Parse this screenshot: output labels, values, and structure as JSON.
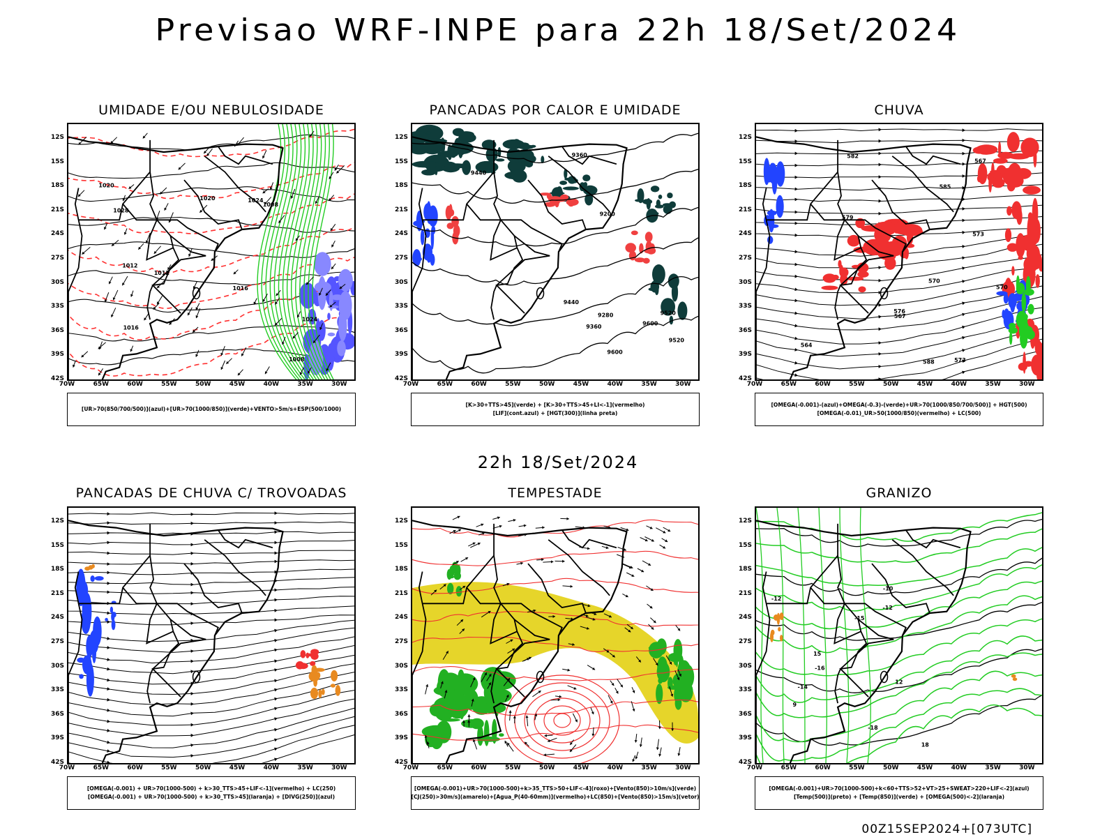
{
  "page": {
    "title": "Previsao WRF-INPE  para 22h 18/Set/2024",
    "mid_title": "22h 18/Set/2024",
    "footer": "00Z15SEP2024+[073UTC]"
  },
  "axes": {
    "lat_labels": [
      "12S",
      "15S",
      "18S",
      "21S",
      "24S",
      "27S",
      "30S",
      "33S",
      "36S",
      "39S",
      "42S"
    ],
    "lon_labels": [
      "70W",
      "65W",
      "60W",
      "55W",
      "50W",
      "45W",
      "40W",
      "35W",
      "30W"
    ]
  },
  "panels": [
    {
      "id": "umidade",
      "title": "UMIDADE E/OU NEBULOSIDADE",
      "legend": [
        "[UR>70(850/700/500)](azul)+[UR>70(1000/850)](verde)+VENTO>5m/s+ESP(500/1000)"
      ],
      "contour_labels": [
        "1008",
        "1012",
        "1016",
        "1020",
        "1024",
        "1028",
        "1016",
        "1012",
        "1008",
        "1020",
        "1024"
      ],
      "colors": {
        "red": "#ff3030",
        "green": "#22cc22",
        "blue": "#5555ff"
      }
    },
    {
      "id": "pancadas_calor",
      "title": "PANCADAS POR CALOR E UMIDADE",
      "legend": [
        "[K>30+TTS>45](verde) + [K>30+TTS>45+LI<-1](vermelho)",
        "[LIF](cont.azul) + [HGT(300)](linha preta)"
      ],
      "contour_labels": [
        "9600",
        "9520",
        "9440",
        "9360",
        "9280",
        "9200",
        "9600",
        "9520",
        "9440",
        "9360"
      ],
      "colors": {
        "dark": "#0f3c3a",
        "red": "#f04040",
        "blue": "#2244ff"
      }
    },
    {
      "id": "chuva",
      "title": "CHUVA",
      "legend": [
        "[OMEGA(-0.001)-(azul)+OMEGA(-0.3)-(verde)+UR>70(1000/850/700/500)] + HGT(500)",
        "[OMEGA(-0.01)_UR>50(1000/850)(vermelho) + LC(500)"
      ],
      "contour_labels": [
        "570",
        "573",
        "567",
        "564",
        "576",
        "579",
        "582",
        "585",
        "588",
        "573",
        "570",
        "567"
      ],
      "colors": {
        "red": "#f03030",
        "green": "#22cc22",
        "blue": "#2244ff"
      }
    },
    {
      "id": "trovoadas",
      "title": "PANCADAS DE CHUVA C/ TROVOADAS",
      "legend": [
        "[OMEGA(-0.001) + UR>70(1000-500) + k>30_TTS>45+LIF<-1](vermelho) + LC(250)",
        "[OMEGA(-0.001) + UR>70(1000-500) + k>30_TTS>45](laranja) + [DIVG(250)](azul)"
      ],
      "contour_labels": [],
      "colors": {
        "red": "#f03030",
        "orange": "#e88a20",
        "blue": "#2244ff"
      }
    },
    {
      "id": "tempestade",
      "title": "TEMPESTADE",
      "legend": [
        "[OMEGA(-0.001)+UR>70(1000-500)+k>35_TTS>50+LIF<-4](roxo)+[Vento(850)>10m/s](verde)",
        "[CJ(250)>30m/s](amarelo)+[Agua_P(40-60mm)](vermelho)+LC(850)+[Vento(850)>15m/s](vetor)"
      ],
      "contour_labels": [],
      "colors": {
        "yellow": "#e6d52a",
        "green": "#22b022",
        "red": "#f03030"
      }
    },
    {
      "id": "granizo",
      "title": "GRANIZO",
      "legend": [
        "[OMEGA(-0.001)+UR>70(1000-500)+k<60+TTS>52+VT>25+SWEAT>220+LIF<-2](azul)",
        "[Temp(500)](preto) + [Temp(850)](verde) + [OMEGA(500)<-2](laranja)"
      ],
      "contour_labels": [
        "-12",
        "-15",
        "-18",
        "-16",
        "-14",
        "-12",
        "-10",
        "9",
        "12",
        "15",
        "18"
      ],
      "colors": {
        "green": "#22cc22",
        "orange": "#e88a20",
        "black": "#000000"
      }
    }
  ]
}
